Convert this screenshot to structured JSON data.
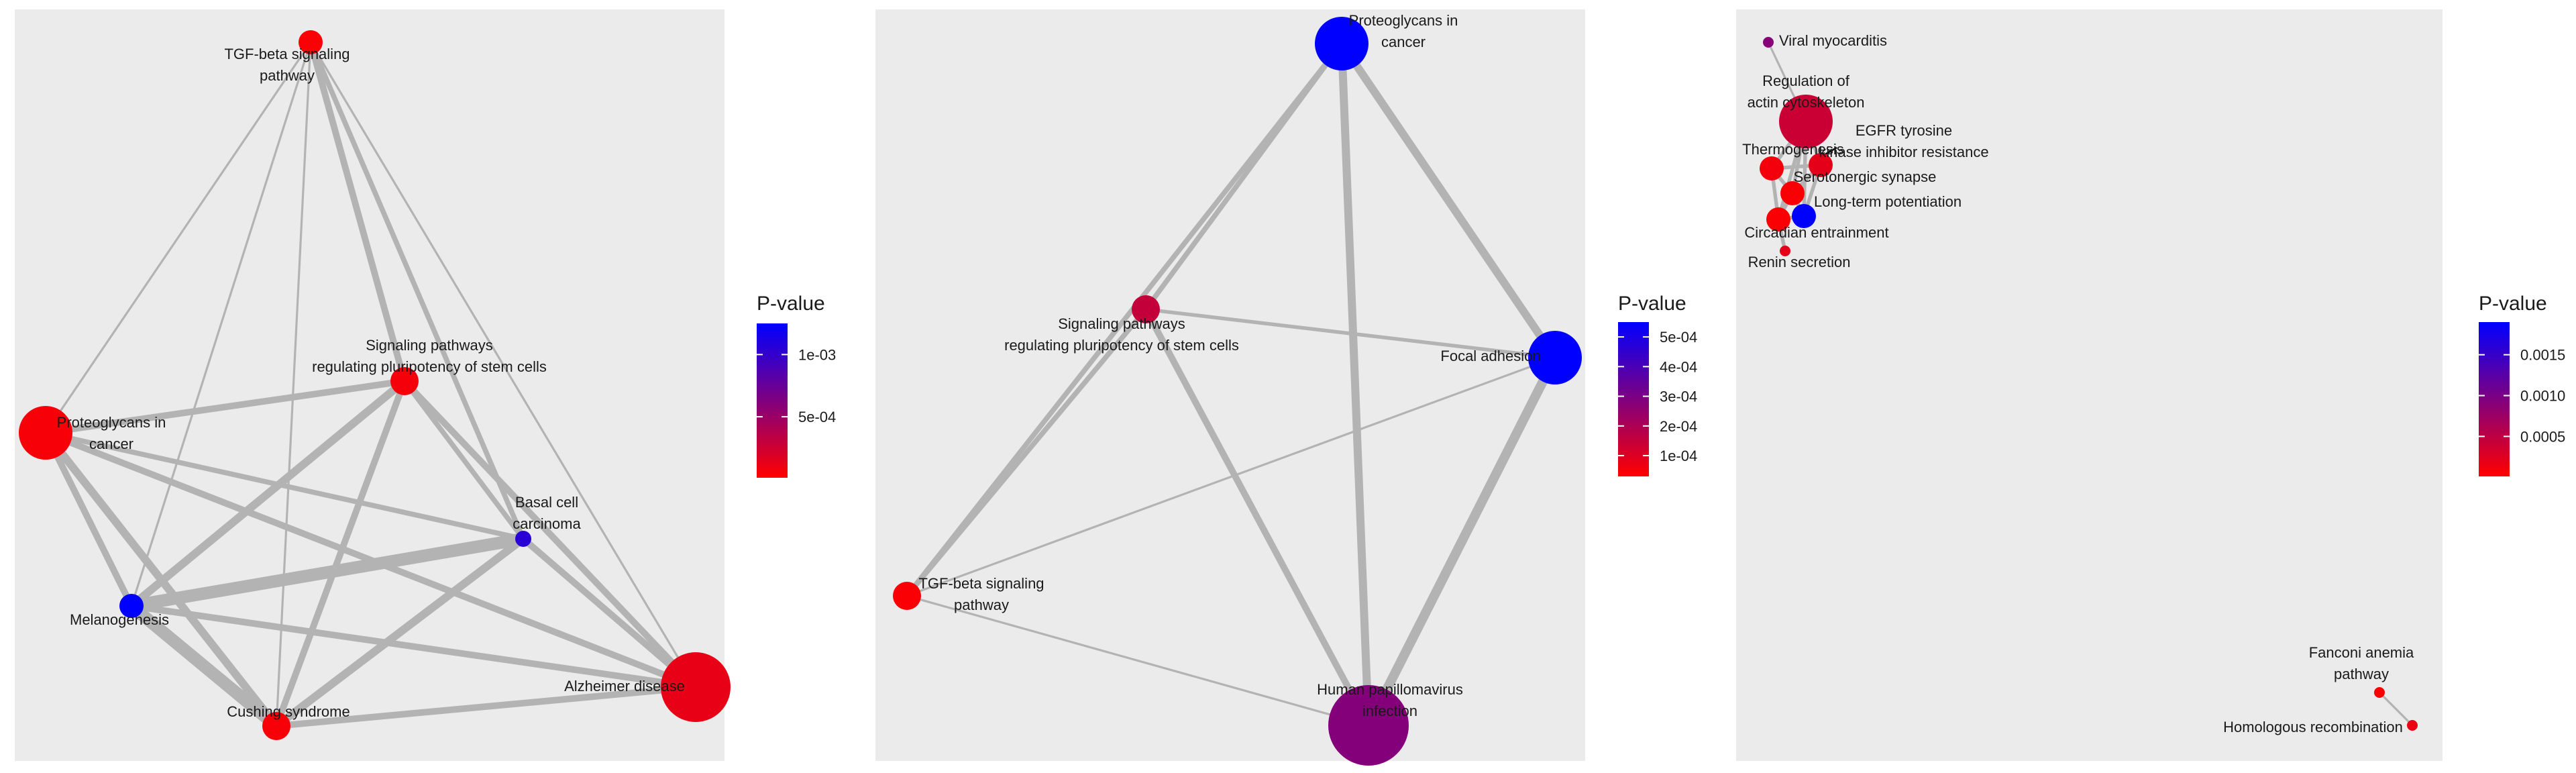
{
  "panels": [
    {
      "id": "p1",
      "legend": {
        "title": "P-value",
        "ticks": [
          {
            "label": "1e-03",
            "value": 0.001
          },
          {
            "label": "5e-04",
            "value": 0.0005
          }
        ],
        "min": 1e-05,
        "max": 0.00125
      },
      "nodes": [
        {
          "id": "tgf",
          "label_lines": [
            "TGF-beta signaling",
            "pathway"
          ],
          "pvalue": 3e-05,
          "size_rank": 1
        },
        {
          "id": "spr",
          "label_lines": [
            "Signaling pathways",
            "regulating pluripotency of stem cells"
          ],
          "pvalue": 6e-05,
          "size_rank": 2
        },
        {
          "id": "pro",
          "label_lines": [
            "Proteoglycans in",
            "cancer"
          ],
          "pvalue": 5e-05,
          "size_rank": 4
        },
        {
          "id": "bcc",
          "label_lines": [
            "Basal cell",
            "carcinoma"
          ],
          "pvalue": 0.00105,
          "size_rank": 0
        },
        {
          "id": "mel",
          "label_lines": [
            "Melanogenesis"
          ],
          "pvalue": 0.00125,
          "size_rank": 1
        },
        {
          "id": "cus",
          "label_lines": [
            "Cushing syndrome"
          ],
          "pvalue": 5e-05,
          "size_rank": 2
        },
        {
          "id": "alz",
          "label_lines": [
            "Alzheimer disease"
          ],
          "pvalue": 0.00012,
          "size_rank": 5
        }
      ],
      "edges": [
        {
          "source": "tgf",
          "target": "spr",
          "weight": 4
        },
        {
          "source": "tgf",
          "target": "cus",
          "weight": 1
        },
        {
          "source": "tgf",
          "target": "mel",
          "weight": 1
        },
        {
          "source": "tgf",
          "target": "pro",
          "weight": 1
        },
        {
          "source": "tgf",
          "target": "bcc",
          "weight": 3
        },
        {
          "source": "tgf",
          "target": "alz",
          "weight": 1
        },
        {
          "source": "spr",
          "target": "pro",
          "weight": 4
        },
        {
          "source": "spr",
          "target": "mel",
          "weight": 5
        },
        {
          "source": "spr",
          "target": "cus",
          "weight": 4
        },
        {
          "source": "spr",
          "target": "alz",
          "weight": 4
        },
        {
          "source": "spr",
          "target": "bcc",
          "weight": 3
        },
        {
          "source": "pro",
          "target": "mel",
          "weight": 4
        },
        {
          "source": "pro",
          "target": "cus",
          "weight": 5
        },
        {
          "source": "pro",
          "target": "bcc",
          "weight": 3
        },
        {
          "source": "pro",
          "target": "alz",
          "weight": 4
        },
        {
          "source": "mel",
          "target": "bcc",
          "weight": 8
        },
        {
          "source": "mel",
          "target": "cus",
          "weight": 8
        },
        {
          "source": "mel",
          "target": "alz",
          "weight": 4
        },
        {
          "source": "bcc",
          "target": "cus",
          "weight": 5
        },
        {
          "source": "bcc",
          "target": "alz",
          "weight": 4
        },
        {
          "source": "cus",
          "target": "alz",
          "weight": 4
        }
      ]
    },
    {
      "id": "p2",
      "legend": {
        "title": "P-value",
        "ticks": [
          {
            "label": "5e-04",
            "value": 0.0005
          },
          {
            "label": "4e-04",
            "value": 0.0004
          },
          {
            "label": "3e-04",
            "value": 0.0003
          },
          {
            "label": "2e-04",
            "value": 0.0002
          },
          {
            "label": "1e-04",
            "value": 0.0001
          }
        ],
        "min": 3e-05,
        "max": 0.00055
      },
      "nodes": [
        {
          "id": "pro",
          "label_lines": [
            "Proteoglycans in",
            "cancer"
          ],
          "pvalue": 0.00055,
          "size_rank": 3
        },
        {
          "id": "spr",
          "label_lines": [
            "Signaling pathways",
            "regulating pluripotency of stem cells"
          ],
          "pvalue": 0.00015,
          "size_rank": 1
        },
        {
          "id": "foc",
          "label_lines": [
            "Focal adhesion"
          ],
          "pvalue": 0.00055,
          "size_rank": 3
        },
        {
          "id": "tgf",
          "label_lines": [
            "TGF-beta signaling",
            "pathway"
          ],
          "pvalue": 4e-05,
          "size_rank": 1
        },
        {
          "id": "hpv",
          "label_lines": [
            "Human papillomavirus",
            "infection"
          ],
          "pvalue": 0.00028,
          "size_rank": 5
        }
      ],
      "edges": [
        {
          "source": "pro",
          "target": "spr",
          "weight": 3
        },
        {
          "source": "pro",
          "target": "foc",
          "weight": 5
        },
        {
          "source": "pro",
          "target": "tgf",
          "weight": 3
        },
        {
          "source": "pro",
          "target": "hpv",
          "weight": 5
        },
        {
          "source": "spr",
          "target": "foc",
          "weight": 2
        },
        {
          "source": "spr",
          "target": "tgf",
          "weight": 3
        },
        {
          "source": "spr",
          "target": "hpv",
          "weight": 4
        },
        {
          "source": "foc",
          "target": "hpv",
          "weight": 6
        },
        {
          "source": "foc",
          "target": "tgf",
          "weight": 1
        },
        {
          "source": "tgf",
          "target": "hpv",
          "weight": 1
        }
      ]
    },
    {
      "id": "p3",
      "legend": {
        "title": "P-value",
        "ticks": [
          {
            "label": "0.0015",
            "value": 0.0015
          },
          {
            "label": "0.0010",
            "value": 0.001
          },
          {
            "label": "0.0005",
            "value": 0.0005
          }
        ],
        "min": 1e-05,
        "max": 0.0019
      },
      "nodes": [
        {
          "id": "vir",
          "label_lines": [
            "Viral myocarditis"
          ],
          "pvalue": 0.0009,
          "size_rank": 0
        },
        {
          "id": "act",
          "label_lines": [
            "Regulation of",
            "actin cytoskeleton"
          ],
          "pvalue": 0.0004,
          "size_rank": 3
        },
        {
          "id": "egf",
          "label_lines": [
            "EGFR tyrosine",
            "kinase inhibitor resistance"
          ],
          "pvalue": 0.0002,
          "size_rank": 1
        },
        {
          "id": "the",
          "label_lines": [
            "Thermogenesis"
          ],
          "pvalue": 0.0001,
          "size_rank": 1
        },
        {
          "id": "ser",
          "label_lines": [
            "Serotonergic synapse"
          ],
          "pvalue": 5e-05,
          "size_rank": 1
        },
        {
          "id": "ltp",
          "label_lines": [
            "Long-term potentiation"
          ],
          "pvalue": 0.0019,
          "size_rank": 1
        },
        {
          "id": "cir",
          "label_lines": [
            "Circadian entrainment"
          ],
          "pvalue": 5e-05,
          "size_rank": 1
        },
        {
          "id": "ren",
          "label_lines": [
            "Renin secretion"
          ],
          "pvalue": 0.0002,
          "size_rank": 0
        },
        {
          "id": "fan",
          "label_lines": [
            "Fanconi anemia",
            "pathway"
          ],
          "pvalue": 3e-05,
          "size_rank": 0
        },
        {
          "id": "hom",
          "label_lines": [
            "Homologous recombination"
          ],
          "pvalue": 0.00015,
          "size_rank": 0
        }
      ],
      "edges": [
        {
          "source": "vir",
          "target": "act",
          "weight": 1
        },
        {
          "source": "act",
          "target": "the",
          "weight": 2
        },
        {
          "source": "act",
          "target": "egf",
          "weight": 2
        },
        {
          "source": "act",
          "target": "ser",
          "weight": 2
        },
        {
          "source": "act",
          "target": "cir",
          "weight": 2
        },
        {
          "source": "act",
          "target": "ltp",
          "weight": 2
        },
        {
          "source": "the",
          "target": "egf",
          "weight": 2
        },
        {
          "source": "the",
          "target": "ser",
          "weight": 2
        },
        {
          "source": "the",
          "target": "cir",
          "weight": 2
        },
        {
          "source": "egf",
          "target": "ser",
          "weight": 2
        },
        {
          "source": "egf",
          "target": "ltp",
          "weight": 2
        },
        {
          "source": "ser",
          "target": "ltp",
          "weight": 2
        },
        {
          "source": "ser",
          "target": "cir",
          "weight": 2
        },
        {
          "source": "cir",
          "target": "ltp",
          "weight": 2
        },
        {
          "source": "cir",
          "target": "ren",
          "weight": 2
        },
        {
          "source": "fan",
          "target": "hom",
          "weight": 1
        }
      ]
    }
  ],
  "colors": {
    "panel_bg": "#ebebeb",
    "edge": "#b3b3b3",
    "low_p": "#ff0000",
    "high_p": "#0000ff"
  }
}
